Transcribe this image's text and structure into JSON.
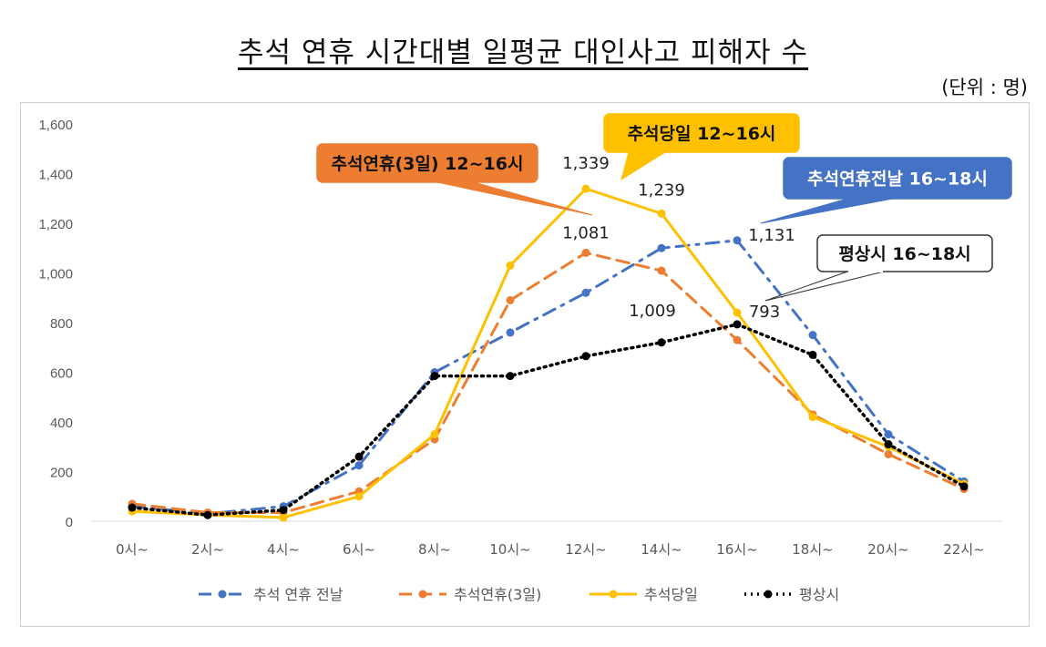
{
  "chart_data": {
    "type": "line",
    "title": "추석 연휴 시간대별 일평균 대인사고 피해자 수",
    "unit_note": "(단위 : 명)",
    "categories": [
      "0시~",
      "2시~",
      "4시~",
      "6시~",
      "8시~",
      "10시~",
      "12시~",
      "14시~",
      "16시~",
      "18시~",
      "20시~",
      "22시~"
    ],
    "ylim": [
      0,
      1600
    ],
    "yticks": [
      "0",
      "200",
      "400",
      "600",
      "800",
      "1,000",
      "1,200",
      "1,400",
      "1,600"
    ],
    "grid": false,
    "legend": "bottom",
    "series": [
      {
        "name": "추석 연휴 전날",
        "color": "#4472C4",
        "style": "dash-dot",
        "values": [
          60,
          30,
          60,
          225,
          600,
          760,
          920,
          1100,
          1131,
          750,
          350,
          160
        ]
      },
      {
        "name": "추석연휴(3일)",
        "color": "#ED7D31",
        "style": "dash",
        "values": [
          70,
          35,
          35,
          120,
          330,
          890,
          1081,
          1009,
          730,
          430,
          270,
          130
        ]
      },
      {
        "name": "추석당일",
        "color": "#FFC000",
        "style": "solid",
        "values": [
          40,
          25,
          15,
          100,
          350,
          1030,
          1339,
          1239,
          840,
          420,
          300,
          150
        ]
      },
      {
        "name": "평상시",
        "color": "#000000",
        "style": "dot",
        "values": [
          55,
          25,
          45,
          260,
          585,
          585,
          665,
          720,
          793,
          670,
          310,
          140
        ]
      }
    ],
    "data_labels": [
      {
        "series": 2,
        "index": 6,
        "text": "1,339"
      },
      {
        "series": 2,
        "index": 7,
        "text": "1,239"
      },
      {
        "series": 1,
        "index": 6,
        "text": "1,081"
      },
      {
        "series": 0,
        "index": 8,
        "text": "1,131"
      },
      {
        "series": 1,
        "index": 7,
        "text": "1,009"
      },
      {
        "series": 3,
        "index": 8,
        "text": "793"
      }
    ],
    "callouts": [
      {
        "text": "추석연휴(3일) 12~16시",
        "fill": "#ED7D31",
        "text_color": "#111111"
      },
      {
        "text": "추석당일 12~16시",
        "fill": "#FFC000",
        "text_color": "#111111"
      },
      {
        "text": "추석연휴전날 16~18시",
        "fill": "#4472C4",
        "text_color": "#ffffff"
      },
      {
        "text": "평상시 16~18시",
        "fill": "#ffffff",
        "text_color": "#111111"
      }
    ]
  }
}
